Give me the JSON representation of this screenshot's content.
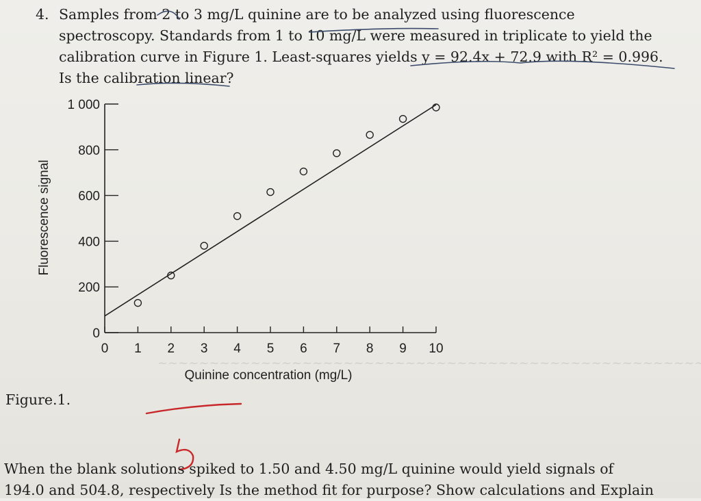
{
  "problem": {
    "number": "4.",
    "line1": "Samples from 2 to 3 mg/L quinine are to be analyzed using fluorescence",
    "line2": "spectroscopy. Standards from 1 to 10 mg/L were measured in triplicate to yield the",
    "line3": "calibration curve in Figure 1. Least-squares yields y = 92.4x + 72.9 with R² = 0.996.",
    "line4": "Is the calibration linear?"
  },
  "chart_data": {
    "type": "scatter",
    "xlabel": "Quinine concentration (mg/L)",
    "ylabel": "Fluorescence signal",
    "x_ticks": [
      "0",
      "1",
      "2",
      "3",
      "4",
      "5",
      "6",
      "7",
      "8",
      "9",
      "10"
    ],
    "y_ticks": [
      "0",
      "200",
      "400",
      "600",
      "800",
      "1 000"
    ],
    "xlim": [
      0,
      10
    ],
    "ylim": [
      0,
      1000
    ],
    "points": [
      {
        "x": 1,
        "y": 130
      },
      {
        "x": 2,
        "y": 250
      },
      {
        "x": 3,
        "y": 380
      },
      {
        "x": 4,
        "y": 510
      },
      {
        "x": 5,
        "y": 615
      },
      {
        "x": 6,
        "y": 705
      },
      {
        "x": 7,
        "y": 785
      },
      {
        "x": 8,
        "y": 865
      },
      {
        "x": 9,
        "y": 935
      },
      {
        "x": 10,
        "y": 985
      }
    ],
    "fit_line": {
      "slope": 92.4,
      "intercept": 72.9
    }
  },
  "figure_label": "Figure.1.",
  "handwritten_mark": "5",
  "bottom": {
    "line1": "When the blank solutions spiked to 1.50 and 4.50 mg/L quinine would yield signals of",
    "line2": "194.0 and 504.8, respectively Is the method fit for purpose? Show calculations and Explain"
  }
}
